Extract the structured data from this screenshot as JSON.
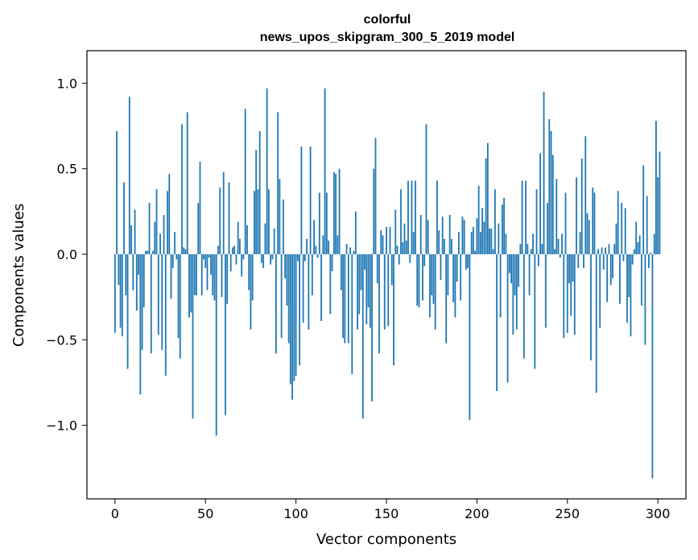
{
  "chart_data": {
    "type": "bar",
    "title_line1": "colorful",
    "title_line2": "news_upos_skipgram_300_5_2019 model",
    "xlabel": "Vector components",
    "ylabel": "Components values",
    "xlim": [
      -15.5,
      315.5
    ],
    "ylim": [
      -1.43,
      1.19
    ],
    "xticks": [
      0,
      50,
      100,
      150,
      200,
      250,
      300
    ],
    "xtick_labels": [
      "0",
      "50",
      "100",
      "150",
      "200",
      "250",
      "300"
    ],
    "yticks": [
      -1.0,
      -0.5,
      0.0,
      0.5,
      1.0
    ],
    "ytick_labels": [
      "−1.0",
      "−0.5",
      "0.0",
      "0.5",
      "1.0"
    ],
    "bar_color": "#1f77b4",
    "values": [
      -0.46,
      0.72,
      -0.18,
      -0.43,
      -0.48,
      0.42,
      -0.24,
      -0.67,
      0.92,
      0.17,
      -0.21,
      0.26,
      -0.33,
      -0.12,
      -0.82,
      -0.56,
      -0.31,
      0.02,
      0.02,
      0.3,
      -0.58,
      0.02,
      0.19,
      0.38,
      -0.47,
      0.12,
      -0.56,
      0.23,
      -0.71,
      0.37,
      0.47,
      -0.26,
      -0.08,
      0.13,
      -0.03,
      -0.49,
      -0.61,
      0.76,
      0.04,
      0.03,
      0.83,
      -0.37,
      -0.34,
      -0.96,
      -0.24,
      -0.24,
      0.3,
      0.54,
      -0.24,
      -0.03,
      -0.08,
      -0.21,
      -0.02,
      -0.12,
      -0.24,
      -0.27,
      -1.06,
      0.05,
      0.39,
      -0.25,
      0.48,
      -0.94,
      -0.29,
      0.42,
      -0.1,
      0.04,
      0.05,
      -0.06,
      0.19,
      0.09,
      -0.13,
      -0.03,
      0.85,
      0.17,
      -0.21,
      -0.44,
      -0.27,
      0.37,
      0.61,
      0.38,
      0.72,
      -0.05,
      -0.08,
      0.18,
      0.97,
      0.38,
      -0.06,
      -0.03,
      0.15,
      -0.58,
      0.83,
      0.44,
      -0.49,
      0.32,
      -0.14,
      -0.3,
      -0.52,
      -0.76,
      -0.85,
      -0.74,
      -0.71,
      -0.04,
      -0.65,
      0.63,
      -0.4,
      -0.04,
      0.09,
      -0.44,
      0.63,
      -0.24,
      0.2,
      0.05,
      -0.02,
      0.36,
      -0.39,
      0.11,
      0.97,
      0.36,
      0.08,
      -0.35,
      -0.1,
      0.48,
      0.47,
      0.11,
      0.5,
      -0.21,
      -0.49,
      -0.52,
      0.06,
      -0.52,
      0.04,
      -0.7,
      0.02,
      0.25,
      -0.44,
      -0.35,
      -0.21,
      -0.96,
      -0.09,
      -0.41,
      -0.31,
      -0.43,
      -0.86,
      0.5,
      0.68,
      -0.17,
      -0.58,
      0.14,
      0.11,
      -0.44,
      0.16,
      -0.42,
      0.16,
      -0.18,
      -0.65,
      0.26,
      0.05,
      -0.06,
      0.38,
      0.07,
      0.18,
      0.08,
      0.43,
      -0.05,
      0.43,
      0.13,
      0.43,
      -0.3,
      -0.31,
      0.23,
      -0.27,
      -0.07,
      0.76,
      0.2,
      -0.37,
      -0.24,
      -0.29,
      -0.44,
      0.43,
      0.14,
      -0.15,
      0.22,
      0.09,
      -0.52,
      -0.24,
      0.23,
      0.09,
      -0.28,
      -0.37,
      -0.16,
      0.13,
      -0.27,
      0.22,
      0.2,
      -0.09,
      -0.08,
      -0.97,
      0.13,
      0.16,
      0.02,
      0.21,
      0.4,
      0.13,
      0.27,
      0.19,
      0.56,
      0.65,
      0.15,
      0.15,
      0.03,
      0.38,
      -0.8,
      0.18,
      -0.37,
      0.29,
      0.33,
      0.12,
      -0.75,
      -0.11,
      -0.17,
      -0.47,
      -0.24,
      -0.44,
      -0.19,
      0.06,
      0.43,
      -0.61,
      0.43,
      0.06,
      -0.24,
      0.03,
      0.12,
      -0.67,
      0.38,
      -0.07,
      0.59,
      0.06,
      0.95,
      -0.43,
      0.3,
      0.79,
      0.72,
      0.58,
      0.03,
      0.44,
      0.09,
      -0.02,
      0.12,
      -0.49,
      0.36,
      -0.46,
      -0.17,
      -0.36,
      -0.16,
      -0.47,
      0.45,
      -0.08,
      0.13,
      0.56,
      -0.08,
      0.69,
      0.24,
      0.2,
      -0.62,
      0.39,
      0.36,
      -0.81,
      0.03,
      -0.43,
      0.04,
      -0.09,
      0.04,
      -0.28,
      0.06,
      -0.18,
      -0.14,
      0.06,
      0.18,
      0.37,
      -0.29,
      0.3,
      -0.04,
      0.27,
      -0.4,
      -0.25,
      -0.48,
      -0.06,
      0.03,
      0.19,
      0.07,
      0.11,
      -0.3,
      0.52,
      -0.53,
      0.34,
      -0.08,
      0.01,
      -1.31,
      0.12,
      0.78,
      0.45,
      0.6
    ]
  }
}
